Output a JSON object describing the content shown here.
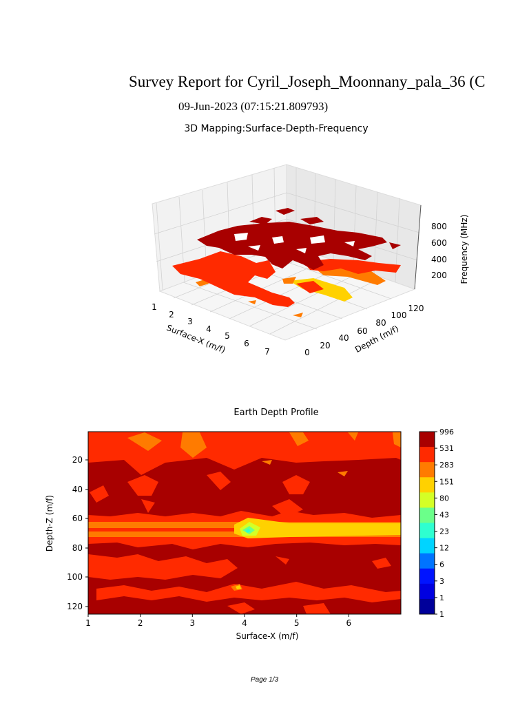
{
  "report": {
    "title": "Survey Report for  Cyril_Joseph_Moonnany_pala_36 (C",
    "date": "09-Jun-2023 (07:15:21.809793)",
    "footer": "Page 1/3"
  },
  "chart_data": [
    {
      "type": "surface3d",
      "title": "3D Mapping:Surface-Depth-Frequency",
      "xlabel": "Surface-X (m/f)",
      "ylabel": "Depth (m/f)",
      "zlabel": "Frequency (MHz)",
      "x_ticks": [
        "1",
        "2",
        "3",
        "4",
        "5",
        "6",
        "7"
      ],
      "y_ticks": [
        "0",
        "20",
        "40",
        "60",
        "80",
        "100",
        "120"
      ],
      "z_ticks": [
        "200",
        "400",
        "600",
        "800"
      ],
      "xlim": [
        1,
        7
      ],
      "ylim": [
        0,
        125
      ],
      "zlim": [
        0,
        1000
      ],
      "grid": true,
      "colors": [
        "#a80000",
        "#ff2a00",
        "#ff7b00",
        "#ffd100"
      ]
    },
    {
      "type": "heatmap",
      "title": "Earth Depth Profile",
      "xlabel": "Surface-X (m/f)",
      "ylabel": "Depth-Z (m/f)",
      "x_ticks": [
        "1",
        "2",
        "3",
        "4",
        "5",
        "6"
      ],
      "y_ticks": [
        "20",
        "40",
        "60",
        "80",
        "100",
        "120"
      ],
      "xlim": [
        1,
        7
      ],
      "ylim": [
        125,
        11
      ],
      "colorbar_levels": [
        "996",
        "531",
        "283",
        "151",
        "80",
        "43",
        "23",
        "12",
        "6",
        "3",
        "1",
        "1"
      ],
      "colorbar_colors": [
        "#a80000",
        "#ff2a00",
        "#ff7b00",
        "#ffd100",
        "#d4ff26",
        "#6bff8a",
        "#2effd0",
        "#00d4ff",
        "#0074ff",
        "#0014ff",
        "#0000e0",
        "#00009a"
      ],
      "bands": [
        {
          "depth_range": [
            11,
            30
          ],
          "dominant": "#ff2a00"
        },
        {
          "depth_range": [
            30,
            65
          ],
          "dominant": "#a80000"
        },
        {
          "depth_range": [
            65,
            73
          ],
          "dominant": "#ff7b00"
        },
        {
          "depth_range": [
            73,
            125
          ],
          "dominant": "#a80000"
        }
      ]
    }
  ]
}
